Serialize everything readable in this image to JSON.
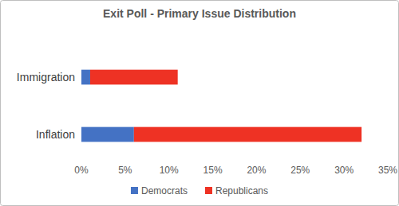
{
  "chart_data": {
    "type": "bar",
    "orientation": "horizontal",
    "stacked": true,
    "title": "Exit Poll - Primary Issue Distribution",
    "categories": [
      "Immigration",
      "Inflation"
    ],
    "series": [
      {
        "name": "Democrats",
        "color": "#4472c4",
        "values": [
          1,
          6
        ]
      },
      {
        "name": "Republicans",
        "color": "#ee3224",
        "values": [
          10,
          26
        ]
      }
    ],
    "xlim": [
      0,
      35
    ],
    "xticks": [
      {
        "value": 0,
        "label": "0%"
      },
      {
        "value": 5,
        "label": "5%"
      },
      {
        "value": 10,
        "label": "10%"
      },
      {
        "value": 15,
        "label": "15%"
      },
      {
        "value": 20,
        "label": "20%"
      },
      {
        "value": 25,
        "label": "25%"
      },
      {
        "value": 30,
        "label": "30%"
      },
      {
        "value": 35,
        "label": "35%"
      }
    ],
    "grid": false,
    "legend": "bottom"
  }
}
